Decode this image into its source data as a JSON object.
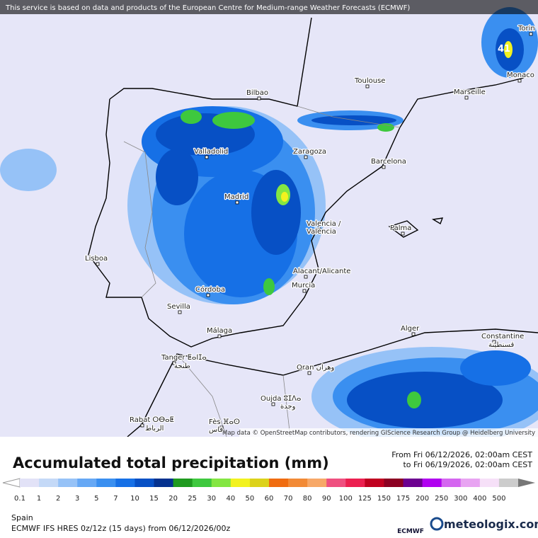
{
  "header": {
    "notice": "This service is based on data and products of the European Centre for Medium-range Weather Forecasts (ECMWF)"
  },
  "map": {
    "labels": [
      "Bilbao",
      "Toulouse",
      "Marseille",
      "Monaco",
      "Torin",
      "Valladolid",
      "Zaragoza",
      "Barcelona",
      "Madrid",
      "Valencia /",
      "València",
      "Palma",
      "Lisboa",
      "Alacant/Alicante",
      "Murcia",
      "Córdoba",
      "Sevilla",
      "Málaga",
      "Alger",
      "Constantine",
      "قسنطينة",
      "Tanger ⵟⴰⵏⵊⴰ",
      "طنجة",
      "Oran وهران",
      "Oujda ⵓⵊⴷⴰ",
      "وجدة",
      "Rabat ⵔⴱⴰⵟ",
      "الرباط",
      "Fès ⴼⴰⵙ",
      "فاس"
    ],
    "peak_label": "41",
    "attribution": "Map data © OpenStreetMap contributors, rendering GIScience Research Group @ Heidelberg University"
  },
  "footer": {
    "title": "Accumulated total precipitation (mm)",
    "from": "From Fri 06/12/2026, 02:00am CEST",
    "to": "to Fri 06/19/2026, 02:00am CEST",
    "region": "Spain",
    "model": "ECMWF IFS HRES 0z/12z (15 days) from 06/12/2026/00z",
    "logo_left": "ECMWF",
    "logo_right": "meteologix.com"
  },
  "legend": {
    "labels": [
      "0.1",
      "1",
      "2",
      "3",
      "5",
      "7",
      "10",
      "15",
      "20",
      "25",
      "30",
      "40",
      "50",
      "60",
      "70",
      "80",
      "90",
      "100",
      "125",
      "150",
      "175",
      "200",
      "250",
      "300",
      "400",
      "500"
    ],
    "colors": [
      "#e2e2f7",
      "#c4d9f7",
      "#96c2f7",
      "#66a8f5",
      "#3a8ff0",
      "#1670e6",
      "#0750c5",
      "#05328f",
      "#1f9a1f",
      "#3ec83e",
      "#84e642",
      "#f2f21f",
      "#dcd21a",
      "#f06c10",
      "#f28a36",
      "#f7a868",
      "#ef5080",
      "#ec2050",
      "#c00020",
      "#8c0022",
      "#6c0090",
      "#b000f0",
      "#d466f0",
      "#e8a4f2",
      "#f6e0f8",
      "#cccccc"
    ]
  }
}
